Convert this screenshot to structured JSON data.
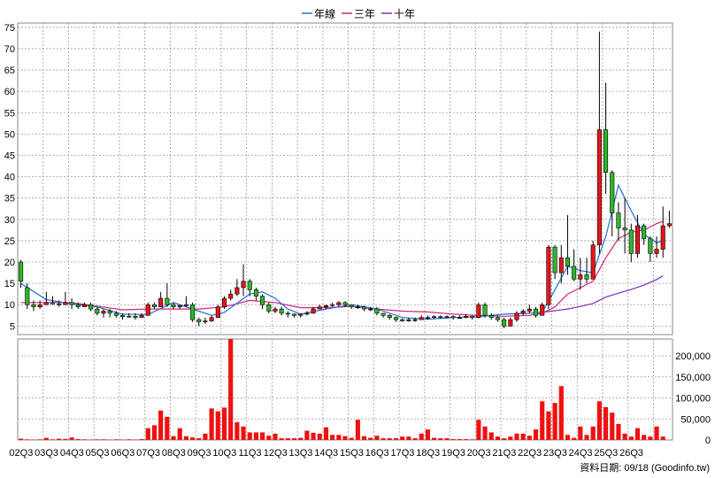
{
  "chart_data": {
    "type": "candlestick+bar",
    "legend": [
      {
        "name": "年線",
        "color": "#1f6fd6"
      },
      {
        "name": "三年",
        "color": "#d6247a"
      },
      {
        "name": "十年",
        "color": "#7a2fbf"
      }
    ],
    "price_axis": {
      "ticks": [
        5,
        10,
        15,
        20,
        25,
        30,
        35,
        40,
        45,
        50,
        55,
        60,
        65,
        70,
        75
      ],
      "ylim": [
        3,
        76
      ]
    },
    "volume_axis": {
      "ticks": [
        "0",
        "50,000",
        "100,000",
        "150,000",
        "200,000"
      ],
      "tick_values": [
        0,
        50000,
        100000,
        150000,
        200000
      ],
      "ylim": [
        0,
        240000
      ]
    },
    "x_labels": [
      "02Q3",
      "03Q3",
      "04Q3",
      "05Q3",
      "06Q3",
      "07Q3",
      "08Q3",
      "09Q3",
      "10Q3",
      "11Q3",
      "12Q3",
      "13Q3",
      "14Q3",
      "15Q3",
      "16Q3",
      "17Q3",
      "18Q3",
      "19Q3",
      "20Q3",
      "21Q3",
      "22Q3",
      "23Q3",
      "24Q3",
      "25Q3",
      "26Q3"
    ],
    "quarters_per_label": 4,
    "candles": [
      [
        20.0,
        15.5,
        20.5,
        14.0
      ],
      [
        14.0,
        10.0,
        15.0,
        9.0
      ],
      [
        10.0,
        9.5,
        11.0,
        8.5
      ],
      [
        9.5,
        10.0,
        11.0,
        9.0
      ],
      [
        10.0,
        10.5,
        13.0,
        10.0
      ],
      [
        10.5,
        10.2,
        12.0,
        10.0
      ],
      [
        10.2,
        10.0,
        11.0,
        9.5
      ],
      [
        10.0,
        10.5,
        13.0,
        10.0
      ],
      [
        10.5,
        10.0,
        11.5,
        9.0
      ],
      [
        10.0,
        9.5,
        10.5,
        9.0
      ],
      [
        9.5,
        10.0,
        10.5,
        9.5
      ],
      [
        10.0,
        9.0,
        10.5,
        8.5
      ],
      [
        9.0,
        8.0,
        9.5,
        7.5
      ],
      [
        8.0,
        8.5,
        9.0,
        7.0
      ],
      [
        8.5,
        8.0,
        9.0,
        7.0
      ],
      [
        8.0,
        7.5,
        8.5,
        7.0
      ],
      [
        7.5,
        7.2,
        8.0,
        6.5
      ],
      [
        7.2,
        7.3,
        8.0,
        7.0
      ],
      [
        7.3,
        7.0,
        8.0,
        6.5
      ],
      [
        7.0,
        7.5,
        8.0,
        7.0
      ],
      [
        7.5,
        10.0,
        10.5,
        7.5
      ],
      [
        10.0,
        9.5,
        10.5,
        9.0
      ],
      [
        9.5,
        11.5,
        13.0,
        9.5
      ],
      [
        11.5,
        10.0,
        15.0,
        9.5
      ],
      [
        10.0,
        9.5,
        10.5,
        9.0
      ],
      [
        9.5,
        9.8,
        10.0,
        9.0
      ],
      [
        9.8,
        10.0,
        12.0,
        9.5
      ],
      [
        10.0,
        6.5,
        10.5,
        6.0
      ],
      [
        6.5,
        6.0,
        7.0,
        5.0
      ],
      [
        6.0,
        6.2,
        7.0,
        5.5
      ],
      [
        6.2,
        7.0,
        7.5,
        6.0
      ],
      [
        7.0,
        9.5,
        10.0,
        7.0
      ],
      [
        9.5,
        11.5,
        12.0,
        9.0
      ],
      [
        11.5,
        12.5,
        13.5,
        11.0
      ],
      [
        12.5,
        14.0,
        16.0,
        12.0
      ],
      [
        14.0,
        15.5,
        19.5,
        12.0
      ],
      [
        15.5,
        13.5,
        16.0,
        12.0
      ],
      [
        13.5,
        12.0,
        14.0,
        11.0
      ],
      [
        12.0,
        10.0,
        12.5,
        9.0
      ],
      [
        10.0,
        8.5,
        10.5,
        8.0
      ],
      [
        8.5,
        9.0,
        9.5,
        8.0
      ],
      [
        9.0,
        8.0,
        9.5,
        7.5
      ],
      [
        8.0,
        7.8,
        8.5,
        7.0
      ],
      [
        7.8,
        7.5,
        8.0,
        7.0
      ],
      [
        7.5,
        7.8,
        8.0,
        7.0
      ],
      [
        7.8,
        8.0,
        8.5,
        7.5
      ],
      [
        8.0,
        9.0,
        9.5,
        8.0
      ],
      [
        9.0,
        9.5,
        10.0,
        9.0
      ],
      [
        9.5,
        9.8,
        10.0,
        9.0
      ],
      [
        9.8,
        10.0,
        10.5,
        9.5
      ],
      [
        10.0,
        10.5,
        10.8,
        9.5
      ],
      [
        10.5,
        10.0,
        10.8,
        9.5
      ],
      [
        10.0,
        9.5,
        10.0,
        9.0
      ],
      [
        9.5,
        9.5,
        10.0,
        9.0
      ],
      [
        9.5,
        9.0,
        9.8,
        8.5
      ],
      [
        9.0,
        9.0,
        9.5,
        8.5
      ],
      [
        9.0,
        8.0,
        9.5,
        7.5
      ],
      [
        8.0,
        7.5,
        8.0,
        7.0
      ],
      [
        7.5,
        7.0,
        7.8,
        6.5
      ],
      [
        7.0,
        6.5,
        7.2,
        6.0
      ],
      [
        6.5,
        6.2,
        6.8,
        6.0
      ],
      [
        6.2,
        6.5,
        7.0,
        6.0
      ],
      [
        6.5,
        6.5,
        7.0,
        6.0
      ],
      [
        6.5,
        7.0,
        7.5,
        6.5
      ],
      [
        7.0,
        7.0,
        7.5,
        6.5
      ],
      [
        7.0,
        7.2,
        7.5,
        6.8
      ],
      [
        7.2,
        7.0,
        7.5,
        6.8
      ],
      [
        7.0,
        7.2,
        7.5,
        6.8
      ],
      [
        7.2,
        7.0,
        7.5,
        6.5
      ],
      [
        7.0,
        7.0,
        7.5,
        6.8
      ],
      [
        7.0,
        7.3,
        7.8,
        6.8
      ],
      [
        7.3,
        7.0,
        7.5,
        6.5
      ],
      [
        7.0,
        10.0,
        10.5,
        6.8
      ],
      [
        10.0,
        7.5,
        10.5,
        7.0
      ],
      [
        7.5,
        7.0,
        8.0,
        6.5
      ],
      [
        7.0,
        6.5,
        7.5,
        6.0
      ],
      [
        6.5,
        5.0,
        7.0,
        4.5
      ],
      [
        5.0,
        6.5,
        7.0,
        5.0
      ],
      [
        6.5,
        8.0,
        8.5,
        6.0
      ],
      [
        8.0,
        8.5,
        9.0,
        7.5
      ],
      [
        8.5,
        9.0,
        10.0,
        8.0
      ],
      [
        9.0,
        7.5,
        9.5,
        7.0
      ],
      [
        7.5,
        10.0,
        10.5,
        7.5
      ],
      [
        10.0,
        23.5,
        24.0,
        9.0
      ],
      [
        23.5,
        17.5,
        24.0,
        16.0
      ],
      [
        17.5,
        21.0,
        24.0,
        15.0
      ],
      [
        21.0,
        19.0,
        31.0,
        17.0
      ],
      [
        19.0,
        16.0,
        23.0,
        15.5
      ],
      [
        16.0,
        17.0,
        21.0,
        13.5
      ],
      [
        17.0,
        16.0,
        21.0,
        15.0
      ],
      [
        16.0,
        24.0,
        25.0,
        16.0
      ],
      [
        24.0,
        51.0,
        74.0,
        22.0
      ],
      [
        51.0,
        41.0,
        62.0,
        36.0
      ],
      [
        41.0,
        31.5,
        41.5,
        26.0
      ],
      [
        31.5,
        28.0,
        34.0,
        25.0
      ],
      [
        28.0,
        27.5,
        35.0,
        22.0
      ],
      [
        27.5,
        22.0,
        29.0,
        20.0
      ],
      [
        22.0,
        28.5,
        31.0,
        21.0
      ],
      [
        28.5,
        25.5,
        29.0,
        24.0
      ],
      [
        25.5,
        22.0,
        26.0,
        20.0
      ],
      [
        22.0,
        23.0,
        26.0,
        21.0
      ],
      [
        23.0,
        28.5,
        33.0,
        21.0
      ],
      [
        28.5,
        29.0,
        32.0,
        28.0
      ]
    ],
    "volume": [
      3000,
      1500,
      1000,
      1500,
      5000,
      1500,
      3000,
      2500,
      6000,
      2000,
      1500,
      1000,
      1500,
      1500,
      1000,
      1500,
      1000,
      1500,
      1000,
      2000,
      28000,
      35000,
      70000,
      55000,
      9000,
      28000,
      9000,
      6000,
      4000,
      15000,
      75000,
      68000,
      77000,
      240000,
      42000,
      32000,
      18000,
      18000,
      18000,
      10000,
      15000,
      4000,
      4000,
      4000,
      5000,
      22000,
      17000,
      15000,
      30000,
      12000,
      12000,
      9000,
      5000,
      48000,
      9000,
      5000,
      10000,
      4000,
      4000,
      4000,
      8000,
      8000,
      4000,
      15000,
      25000,
      5000,
      4000,
      4000,
      2000,
      2000,
      2000,
      1500,
      48000,
      32000,
      18000,
      8000,
      4000,
      8000,
      15000,
      15000,
      10000,
      25000,
      92000,
      68000,
      88000,
      128000,
      12000,
      5000,
      32000,
      12000,
      32000,
      92000,
      78000,
      65000,
      38000,
      15000,
      8000,
      28000,
      12000,
      8000,
      32000,
      8000
    ],
    "ma_yearly": [
      [
        0,
        15
      ],
      [
        4,
        11.2
      ],
      [
        8,
        10.2
      ],
      [
        12,
        9.5
      ],
      [
        16,
        7.8
      ],
      [
        20,
        7.7
      ],
      [
        24,
        10.5
      ],
      [
        28,
        8.5
      ],
      [
        30,
        7.5
      ],
      [
        32,
        8.2
      ],
      [
        36,
        12.5
      ],
      [
        38,
        13.0
      ],
      [
        40,
        11.5
      ],
      [
        42,
        9.0
      ],
      [
        44,
        7.8
      ],
      [
        48,
        9.0
      ],
      [
        52,
        10.0
      ],
      [
        56,
        9.0
      ],
      [
        60,
        7.0
      ],
      [
        64,
        6.6
      ],
      [
        68,
        7.0
      ],
      [
        72,
        7.2
      ],
      [
        76,
        7.8
      ],
      [
        80,
        8.0
      ],
      [
        82,
        8.2
      ],
      [
        84,
        13.5
      ],
      [
        86,
        19.0
      ],
      [
        88,
        18.0
      ],
      [
        90,
        17.5
      ],
      [
        92,
        26.0
      ],
      [
        94,
        38.0
      ],
      [
        96,
        32.0
      ],
      [
        98,
        26.5
      ],
      [
        100,
        24.5
      ],
      [
        101,
        25.0
      ]
    ],
    "ma_3y": [
      [
        0,
        10.5
      ],
      [
        8,
        10.5
      ],
      [
        16,
        8.8
      ],
      [
        20,
        9.0
      ],
      [
        28,
        9.0
      ],
      [
        32,
        9.5
      ],
      [
        36,
        11.0
      ],
      [
        40,
        10.5
      ],
      [
        44,
        9.3
      ],
      [
        48,
        9.3
      ],
      [
        52,
        9.6
      ],
      [
        56,
        9.0
      ],
      [
        60,
        8.5
      ],
      [
        64,
        8.3
      ],
      [
        68,
        7.8
      ],
      [
        72,
        7.5
      ],
      [
        76,
        7.3
      ],
      [
        80,
        7.5
      ],
      [
        82,
        8.0
      ],
      [
        84,
        9.5
      ],
      [
        86,
        12.5
      ],
      [
        88,
        14.0
      ],
      [
        90,
        15.5
      ],
      [
        92,
        21.0
      ],
      [
        94,
        25.5
      ],
      [
        96,
        27.0
      ],
      [
        98,
        27.5
      ],
      [
        100,
        29.0
      ],
      [
        101,
        29.5
      ]
    ],
    "ma_10y": [
      [
        82,
        8.2
      ],
      [
        84,
        8.6
      ],
      [
        86,
        9.0
      ],
      [
        88,
        9.6
      ],
      [
        90,
        10.3
      ],
      [
        92,
        11.8
      ],
      [
        94,
        12.7
      ],
      [
        96,
        13.6
      ],
      [
        98,
        14.6
      ],
      [
        100,
        15.9
      ],
      [
        101,
        16.8
      ]
    ],
    "footer": "資料日期: 09/18  (Goodinfo.tw)"
  }
}
